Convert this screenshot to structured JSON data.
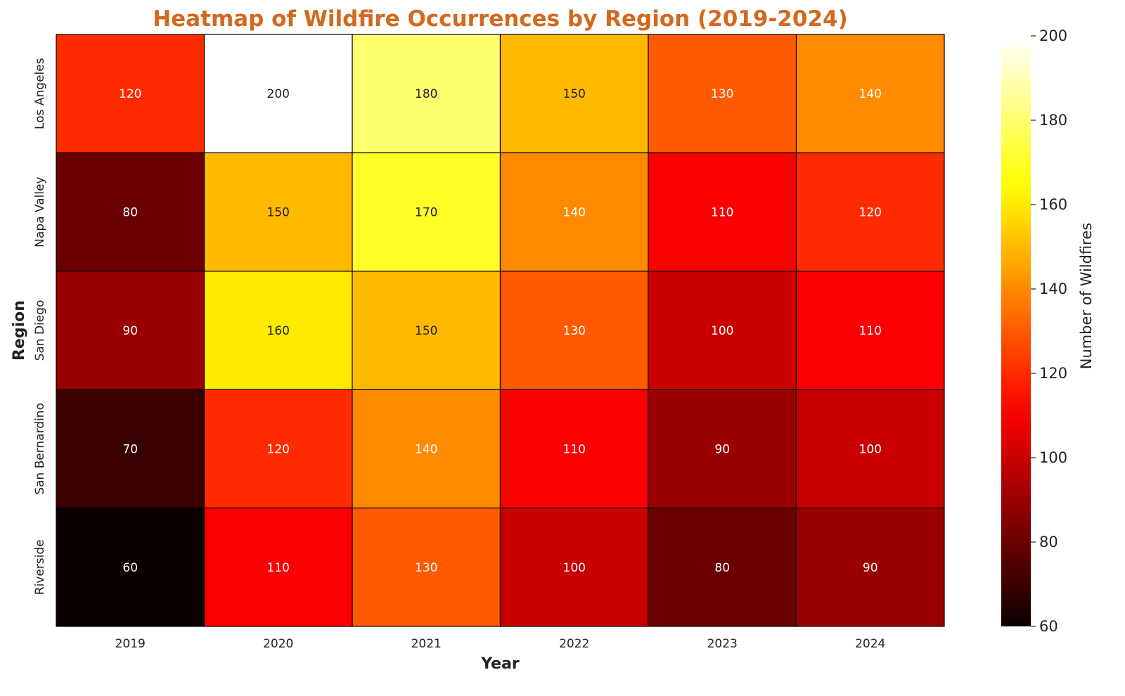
{
  "chart_data": {
    "type": "heatmap",
    "title": "Heatmap of Wildfire Occurrences by Region (2019-2024)",
    "xlabel": "Year",
    "ylabel": "Region",
    "x_categories": [
      "2019",
      "2020",
      "2021",
      "2022",
      "2023",
      "2024"
    ],
    "y_categories": [
      "Los Angeles",
      "Napa Valley",
      "San Diego",
      "San Bernardino",
      "Riverside"
    ],
    "values": [
      [
        120,
        200,
        180,
        150,
        130,
        140
      ],
      [
        80,
        150,
        170,
        140,
        110,
        120
      ],
      [
        90,
        160,
        150,
        130,
        100,
        110
      ],
      [
        70,
        120,
        140,
        110,
        90,
        100
      ],
      [
        60,
        110,
        130,
        100,
        80,
        90
      ]
    ],
    "colorbar": {
      "label": "Number of Wildfires",
      "range": [
        60,
        200
      ],
      "ticks": [
        "60",
        "80",
        "100",
        "120",
        "140",
        "160",
        "180",
        "200"
      ],
      "colormap": "hot"
    },
    "annotations": true,
    "colors": {
      "title": "#d2691e",
      "cell_border": "#000000"
    }
  }
}
